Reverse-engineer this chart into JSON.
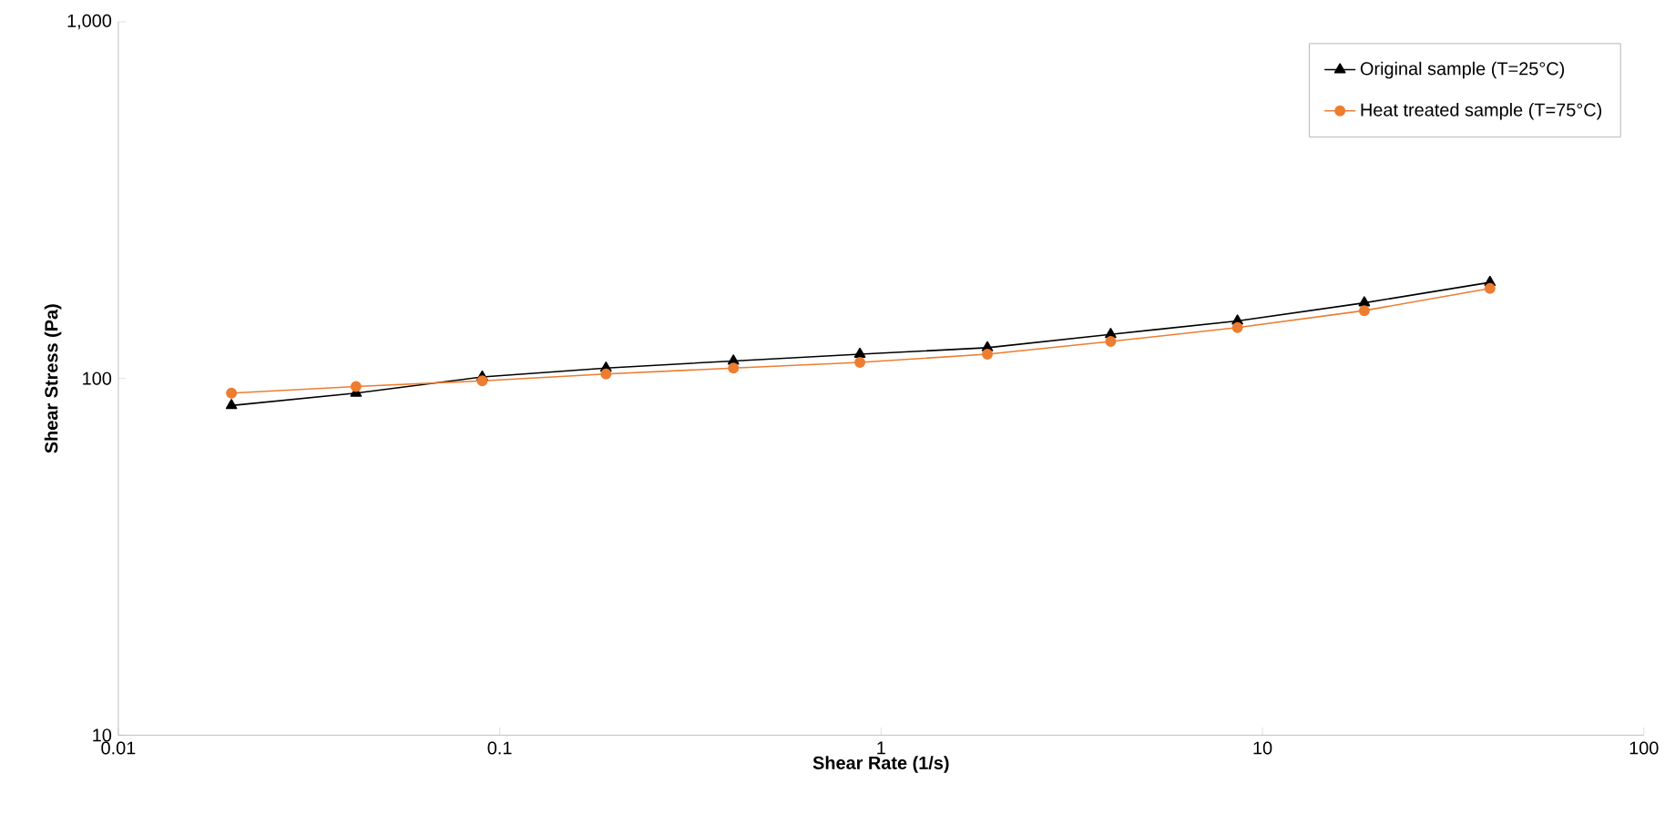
{
  "chart_data": {
    "type": "line",
    "xlabel": "Shear Rate (1/s)",
    "ylabel": "Shear Stress (Pa)",
    "x": [
      0.0198,
      0.042,
      0.09,
      0.19,
      0.41,
      0.88,
      1.9,
      4.0,
      8.6,
      18.5,
      39.5
    ],
    "series": [
      {
        "name": "Original sample (T=25°C)",
        "color": "#000000",
        "marker": "triangle",
        "values": [
          84,
          91,
          101,
          107,
          112,
          117,
          122,
          133,
          145,
          163,
          186
        ]
      },
      {
        "name": "Heat treated sample (T=75°C)",
        "color": "#ed7d31",
        "marker": "circle",
        "values": [
          91,
          95,
          98.5,
          103,
          107,
          111,
          117,
          127,
          139,
          155,
          179
        ]
      }
    ],
    "log": "xy",
    "grid": false,
    "legend": "top right",
    "xlim": [
      0.01,
      100
    ],
    "xticks": [
      0.01,
      0.1,
      1,
      10,
      100
    ],
    "ylim": [
      10,
      1000
    ],
    "yticks": [
      10,
      100,
      {
        "value": 1000,
        "label": "1,000"
      }
    ]
  }
}
